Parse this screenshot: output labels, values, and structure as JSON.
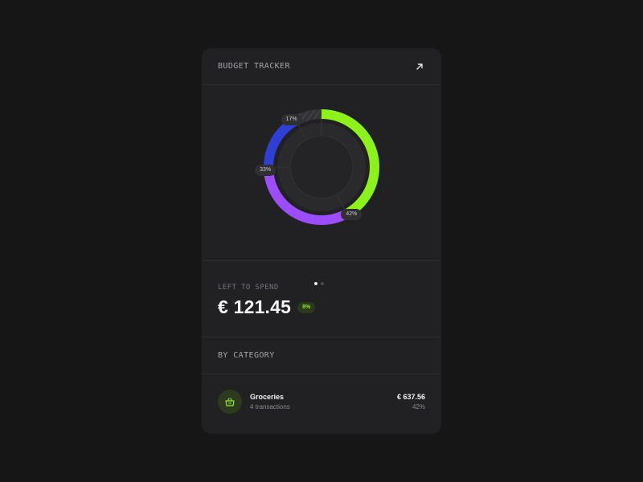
{
  "header": {
    "title": "BUDGET TRACKER",
    "expand_icon": "arrow-up-right-icon"
  },
  "chart_data": {
    "type": "pie",
    "style": "donut",
    "slices": [
      {
        "label": "42%",
        "value": 42,
        "color": "#8cf21a"
      },
      {
        "label": "33%",
        "value": 33,
        "color": "#9b4dff"
      },
      {
        "label": "17%",
        "value": 17,
        "color": "#2e3fd6"
      },
      {
        "label": "",
        "value": 8,
        "color": "#3a3a3e",
        "hatched": true
      }
    ]
  },
  "pager": {
    "pages": 2,
    "active": 0
  },
  "spend": {
    "label": "LEFT TO SPEND",
    "amount": "€ 121.45",
    "badge": "8%",
    "badge_color": "#8ce63c"
  },
  "categories": {
    "title": "BY CATEGORY",
    "items": [
      {
        "name": "Groceries",
        "transactions": "4 transactions",
        "amount": "€ 637.56",
        "percent": "42%",
        "icon": "shopping-basket-icon",
        "icon_color": "#8ce63c"
      }
    ]
  }
}
